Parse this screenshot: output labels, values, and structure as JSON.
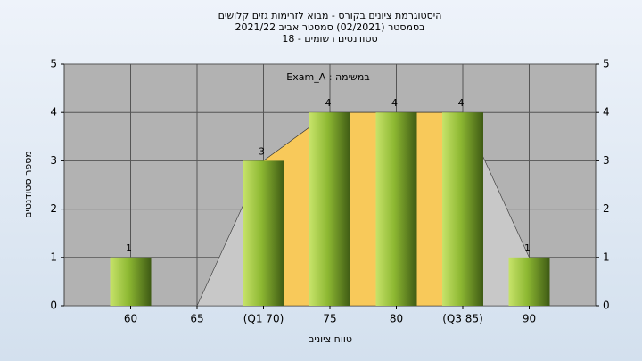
{
  "chart_data": {
    "type": "bar",
    "title": "היסטוגרמת ציונים בקורס - מבוא לזרימות גזים קלושים",
    "subtitle": "בסמסטר  (02/2021)  סמסטר אביב 2021/22",
    "subtitle2": "סטודנטים רשומים - 18",
    "annotation": "Exam_A : במשימה",
    "x_label": "טווח ציונים",
    "y_label": "מספר סטודנטים",
    "categories": [
      "60",
      "65",
      "(Q1 70)",
      "75",
      "80",
      "(Q3 85)",
      "90"
    ],
    "values": [
      1,
      0,
      3,
      4,
      4,
      4,
      1
    ],
    "color": "#8db832",
    "ylim": [
      0,
      5
    ],
    "yticks": [
      0,
      1,
      2,
      3,
      4,
      5
    ],
    "grid": true
  }
}
